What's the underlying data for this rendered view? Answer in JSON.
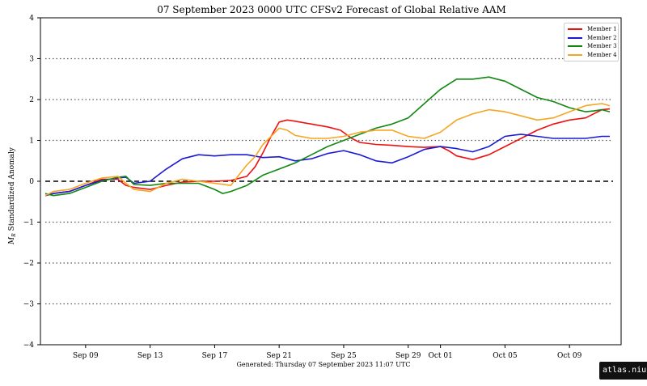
{
  "chart_data": {
    "type": "line",
    "title": "07  September  2023 0000 UTC   CFSv2 Forecast of Global Relative AAM",
    "ylabel": "M_R Standardized Anomaly",
    "ylabel_main": "M",
    "ylabel_sub": "R",
    "ylabel_rest": " Standardized Anomaly",
    "footer": "Generated: Thursday  07  September  2023  11:07 UTC",
    "watermark": "atlas.niu.edu",
    "ylim": [
      -4,
      4
    ],
    "yticks": [
      -4,
      -3,
      -2,
      -1,
      0,
      1,
      2,
      3,
      4
    ],
    "ytick_labels": [
      "−4",
      "−3",
      "−2",
      "−1",
      "0",
      "1",
      "2",
      "3",
      "4"
    ],
    "dotted_levels": [
      -3,
      -2,
      -1,
      1,
      2,
      3
    ],
    "dashed_levels": [
      0
    ],
    "xlim": [
      -1.8,
      34.2
    ],
    "xticks": [
      {
        "value": 1,
        "label": "Sep 09"
      },
      {
        "value": 5,
        "label": "Sep 13"
      },
      {
        "value": 9,
        "label": "Sep 17"
      },
      {
        "value": 13,
        "label": "Sep 21"
      },
      {
        "value": 17,
        "label": "Sep 25"
      },
      {
        "value": 21,
        "label": "Sep 29"
      },
      {
        "value": 23,
        "label": "Oct 01"
      },
      {
        "value": 27,
        "label": "Oct 05"
      },
      {
        "value": 31,
        "label": "Oct 09"
      }
    ],
    "legend_position": "top-right",
    "x_note": "x = days after Sep 08 (0 = Sep 08)",
    "series": [
      {
        "name": "Member 1",
        "color": "#ee1111",
        "points": [
          [
            -1.5,
            -0.35
          ],
          [
            -1,
            -0.3
          ],
          [
            0,
            -0.25
          ],
          [
            1,
            -0.1
          ],
          [
            2,
            0.05
          ],
          [
            2.5,
            0.05
          ],
          [
            3,
            0.05
          ],
          [
            3.5,
            -0.1
          ],
          [
            4,
            -0.15
          ],
          [
            5,
            -0.2
          ],
          [
            6,
            -0.1
          ],
          [
            7,
            -0.02
          ],
          [
            8,
            0
          ],
          [
            9,
            0
          ],
          [
            10,
            0.02
          ],
          [
            11,
            0.12
          ],
          [
            11.5,
            0.35
          ],
          [
            12,
            0.7
          ],
          [
            12.5,
            1.1
          ],
          [
            13,
            1.45
          ],
          [
            13.5,
            1.5
          ],
          [
            14,
            1.47
          ],
          [
            15,
            1.4
          ],
          [
            16,
            1.33
          ],
          [
            16.8,
            1.25
          ],
          [
            17.5,
            1.05
          ],
          [
            18,
            0.95
          ],
          [
            19,
            0.9
          ],
          [
            20,
            0.88
          ],
          [
            21,
            0.85
          ],
          [
            22,
            0.83
          ],
          [
            23,
            0.85
          ],
          [
            23.5,
            0.75
          ],
          [
            24,
            0.62
          ],
          [
            25,
            0.53
          ],
          [
            26,
            0.65
          ],
          [
            27,
            0.85
          ],
          [
            28,
            1.05
          ],
          [
            29,
            1.25
          ],
          [
            30,
            1.4
          ],
          [
            31,
            1.5
          ],
          [
            32,
            1.55
          ],
          [
            32.5,
            1.65
          ],
          [
            33,
            1.75
          ],
          [
            33.5,
            1.77
          ]
        ]
      },
      {
        "name": "Member 2",
        "color": "#1a1ad4",
        "points": [
          [
            -1.5,
            -0.35
          ],
          [
            -1,
            -0.3
          ],
          [
            0,
            -0.25
          ],
          [
            1,
            -0.1
          ],
          [
            2,
            0.02
          ],
          [
            3,
            0.08
          ],
          [
            3.5,
            0.1
          ],
          [
            4,
            -0.05
          ],
          [
            5,
            0.0
          ],
          [
            5.5,
            0.15
          ],
          [
            6,
            0.3
          ],
          [
            7,
            0.55
          ],
          [
            8,
            0.65
          ],
          [
            9,
            0.62
          ],
          [
            10,
            0.65
          ],
          [
            11,
            0.65
          ],
          [
            12,
            0.58
          ],
          [
            13,
            0.6
          ],
          [
            14,
            0.5
          ],
          [
            15,
            0.55
          ],
          [
            16,
            0.68
          ],
          [
            17,
            0.75
          ],
          [
            18,
            0.65
          ],
          [
            19,
            0.5
          ],
          [
            20,
            0.45
          ],
          [
            21,
            0.6
          ],
          [
            22,
            0.78
          ],
          [
            23,
            0.85
          ],
          [
            24,
            0.8
          ],
          [
            25,
            0.72
          ],
          [
            26,
            0.85
          ],
          [
            27,
            1.1
          ],
          [
            28,
            1.15
          ],
          [
            29,
            1.1
          ],
          [
            30,
            1.05
          ],
          [
            31,
            1.05
          ],
          [
            32,
            1.05
          ],
          [
            33,
            1.1
          ],
          [
            33.5,
            1.1
          ]
        ]
      },
      {
        "name": "Member 3",
        "color": "#118811",
        "points": [
          [
            -1.5,
            -0.3
          ],
          [
            -1,
            -0.35
          ],
          [
            0,
            -0.3
          ],
          [
            1,
            -0.15
          ],
          [
            2,
            0.0
          ],
          [
            3,
            0.1
          ],
          [
            3.5,
            0.12
          ],
          [
            4,
            -0.08
          ],
          [
            5,
            -0.1
          ],
          [
            6,
            -0.05
          ],
          [
            7,
            -0.05
          ],
          [
            8,
            -0.05
          ],
          [
            9,
            -0.2
          ],
          [
            9.5,
            -0.3
          ],
          [
            10,
            -0.25
          ],
          [
            11,
            -0.1
          ],
          [
            12,
            0.15
          ],
          [
            13,
            0.3
          ],
          [
            14,
            0.45
          ],
          [
            15,
            0.65
          ],
          [
            16,
            0.85
          ],
          [
            17,
            1.0
          ],
          [
            18,
            1.15
          ],
          [
            19,
            1.3
          ],
          [
            20,
            1.4
          ],
          [
            21,
            1.55
          ],
          [
            22,
            1.9
          ],
          [
            23,
            2.25
          ],
          [
            24,
            2.5
          ],
          [
            25,
            2.5
          ],
          [
            26,
            2.55
          ],
          [
            26.5,
            2.5
          ],
          [
            27,
            2.45
          ],
          [
            28,
            2.25
          ],
          [
            29,
            2.05
          ],
          [
            30,
            1.95
          ],
          [
            31,
            1.8
          ],
          [
            32,
            1.7
          ],
          [
            32.5,
            1.72
          ],
          [
            33,
            1.75
          ],
          [
            33.5,
            1.7
          ]
        ]
      },
      {
        "name": "Member 4",
        "color": "#f5a623",
        "points": [
          [
            -1.5,
            -0.35
          ],
          [
            -1,
            -0.25
          ],
          [
            0,
            -0.2
          ],
          [
            1,
            -0.05
          ],
          [
            2,
            0.08
          ],
          [
            3,
            0.12
          ],
          [
            3.5,
            -0.05
          ],
          [
            4,
            -0.2
          ],
          [
            5,
            -0.25
          ],
          [
            6,
            -0.05
          ],
          [
            7,
            0.05
          ],
          [
            8,
            0.0
          ],
          [
            9,
            -0.05
          ],
          [
            10,
            -0.1
          ],
          [
            10.5,
            0.15
          ],
          [
            11,
            0.4
          ],
          [
            11.5,
            0.6
          ],
          [
            12,
            0.9
          ],
          [
            12.5,
            1.1
          ],
          [
            13,
            1.3
          ],
          [
            13.5,
            1.25
          ],
          [
            14,
            1.12
          ],
          [
            15,
            1.05
          ],
          [
            16,
            1.05
          ],
          [
            17,
            1.1
          ],
          [
            18,
            1.2
          ],
          [
            19,
            1.25
          ],
          [
            20,
            1.25
          ],
          [
            21,
            1.1
          ],
          [
            22,
            1.05
          ],
          [
            23,
            1.2
          ],
          [
            24,
            1.5
          ],
          [
            25,
            1.65
          ],
          [
            26,
            1.75
          ],
          [
            27,
            1.7
          ],
          [
            28,
            1.6
          ],
          [
            29,
            1.5
          ],
          [
            30,
            1.55
          ],
          [
            31,
            1.7
          ],
          [
            32,
            1.85
          ],
          [
            33,
            1.9
          ],
          [
            33.5,
            1.85
          ]
        ]
      }
    ]
  }
}
